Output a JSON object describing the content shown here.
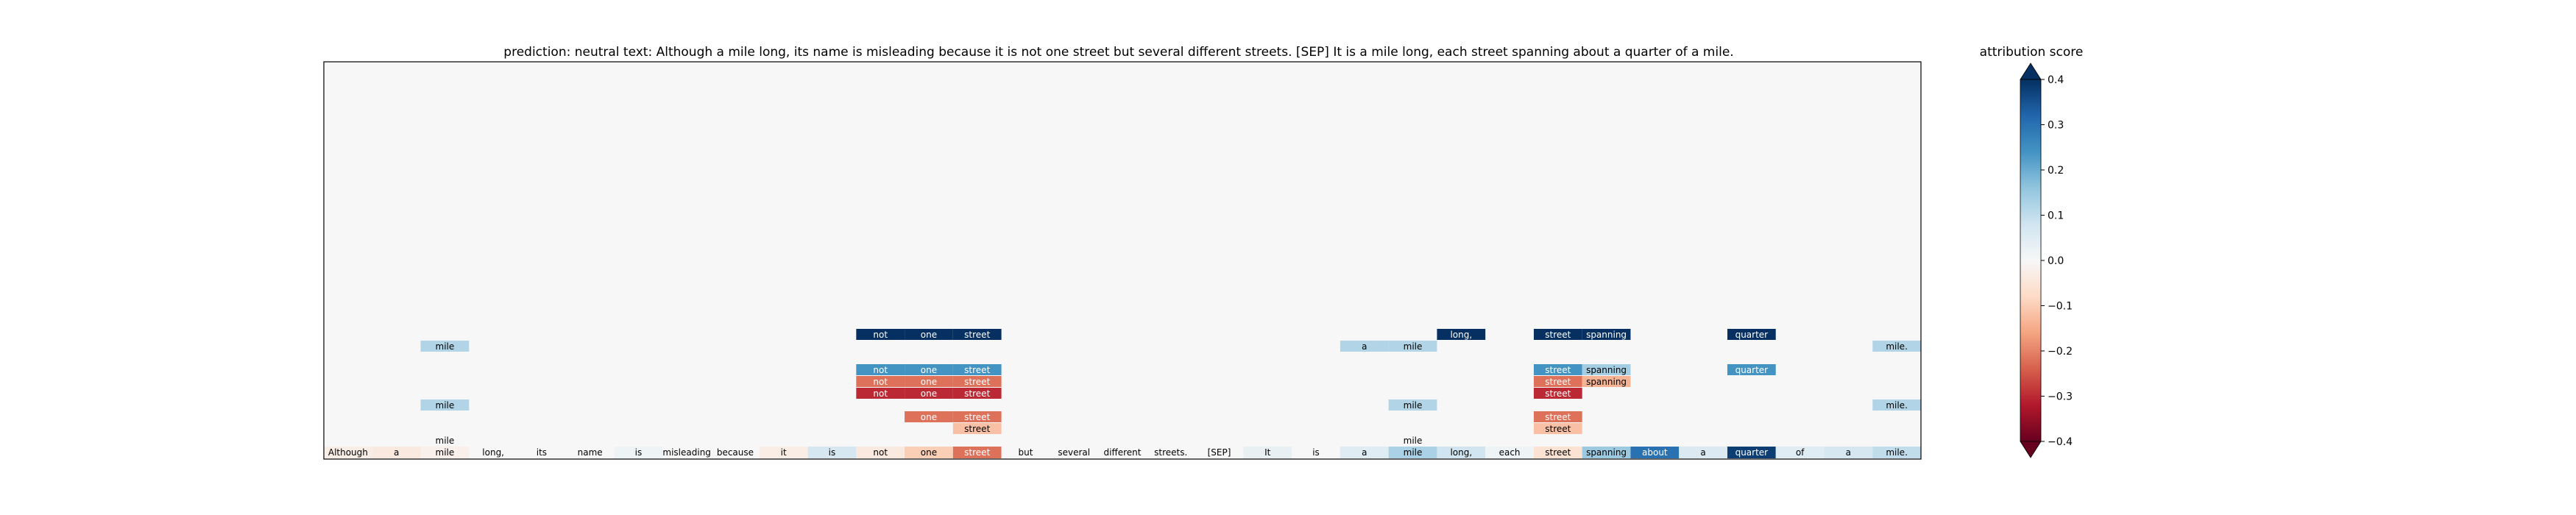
{
  "chart_data": {
    "type": "heatmap",
    "title": "prediction:  neutral     text:  Although a mile long, its name is misleading because it is not one street but several different streets. [SEP] It is a mile long, each street spanning about a quarter of a mile.",
    "tokens": [
      "Although",
      "a",
      "mile",
      "long,",
      "its",
      "name",
      "is",
      "misleading",
      "because",
      "it",
      "is",
      "not",
      "one",
      "street",
      "but",
      "several",
      "different",
      "streets.",
      "[SEP]",
      "It",
      "is",
      "a",
      "mile",
      "long,",
      "each",
      "street",
      "spanning",
      "about",
      "a",
      "quarter",
      "of",
      "a",
      "mile."
    ],
    "token_scores": [
      -0.03,
      -0.04,
      -0.02,
      0.0,
      0.0,
      0.0,
      0.02,
      0.0,
      0.0,
      -0.03,
      0.07,
      -0.04,
      -0.1,
      -0.22,
      0.0,
      0.0,
      0.0,
      0.0,
      0.0,
      0.03,
      0.0,
      0.05,
      0.13,
      0.08,
      0.02,
      -0.06,
      0.15,
      0.3,
      0.06,
      0.38,
      0.05,
      0.07,
      0.1
    ],
    "layers": [
      {
        "cells": [
          {
            "token": 11,
            "label": "not",
            "score": 0.4
          },
          {
            "token": 12,
            "label": "one",
            "score": 0.4
          },
          {
            "token": 13,
            "label": "street",
            "score": 0.4
          },
          {
            "token": 23,
            "label": "long,",
            "score": 0.4
          },
          {
            "token": 25,
            "label": "street",
            "score": 0.4
          },
          {
            "token": 26,
            "label": "spanning",
            "score": 0.4
          },
          {
            "token": 29,
            "label": "quarter",
            "score": 0.4
          }
        ]
      },
      {
        "cells": [
          {
            "token": 2,
            "label": "mile",
            "score": 0.12
          },
          {
            "token": 21,
            "label": "a",
            "score": 0.12
          },
          {
            "token": 22,
            "label": "mile",
            "score": 0.12
          },
          {
            "token": 32,
            "label": "mile.",
            "score": 0.12
          }
        ]
      },
      {
        "cells": []
      },
      {
        "cells": [
          {
            "token": 11,
            "label": "not",
            "score": 0.24
          },
          {
            "token": 12,
            "label": "one",
            "score": 0.24
          },
          {
            "token": 13,
            "label": "street",
            "score": 0.24
          },
          {
            "token": 25,
            "label": "street",
            "score": 0.24
          },
          {
            "token": 26,
            "label": "spanning",
            "score": 0.14
          },
          {
            "token": 29,
            "label": "quarter",
            "score": 0.24
          }
        ]
      },
      {
        "cells": [
          {
            "token": 11,
            "label": "not",
            "score": -0.22
          },
          {
            "token": 12,
            "label": "one",
            "score": -0.22
          },
          {
            "token": 13,
            "label": "street",
            "score": -0.22
          },
          {
            "token": 25,
            "label": "street",
            "score": -0.22
          },
          {
            "token": 26,
            "label": "spanning",
            "score": -0.14
          }
        ]
      },
      {
        "cells": [
          {
            "token": 11,
            "label": "not",
            "score": -0.3
          },
          {
            "token": 12,
            "label": "one",
            "score": -0.3
          },
          {
            "token": 13,
            "label": "street",
            "score": -0.3
          },
          {
            "token": 25,
            "label": "street",
            "score": -0.3
          }
        ]
      },
      {
        "cells": [
          {
            "token": 2,
            "label": "mile",
            "score": 0.12
          },
          {
            "token": 22,
            "label": "mile",
            "score": 0.12
          },
          {
            "token": 32,
            "label": "mile.",
            "score": 0.12
          }
        ]
      },
      {
        "cells": [
          {
            "token": 12,
            "label": "one",
            "score": -0.22
          },
          {
            "token": 13,
            "label": "street",
            "score": -0.22
          },
          {
            "token": 25,
            "label": "street",
            "score": -0.22
          }
        ]
      },
      {
        "cells": [
          {
            "token": 13,
            "label": "street",
            "score": -0.12
          },
          {
            "token": 25,
            "label": "street",
            "score": -0.12
          }
        ]
      },
      {
        "cells": [
          {
            "token": 2,
            "label": "mile",
            "score": 0.0
          },
          {
            "token": 22,
            "label": "mile",
            "score": 0.0
          }
        ]
      }
    ],
    "colorbar": {
      "title": "attribution score",
      "vmin": -0.4,
      "vmax": 0.4,
      "ticks": [
        0.4,
        0.3,
        0.2,
        0.1,
        0.0,
        -0.1,
        -0.2,
        -0.3,
        -0.4
      ],
      "tick_labels": [
        "0.4",
        "0.3",
        "0.2",
        "0.1",
        "0.0",
        "−0.1",
        "−0.2",
        "−0.3",
        "−0.4"
      ],
      "colormap": "RdBu",
      "extend": "both"
    },
    "background_color": "#f6f7f6"
  }
}
